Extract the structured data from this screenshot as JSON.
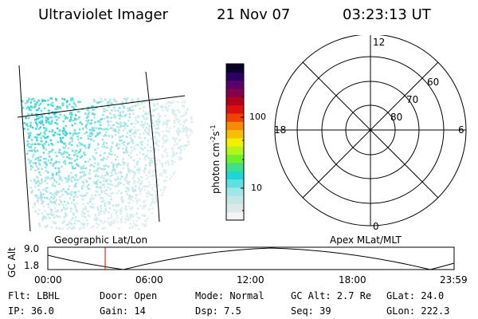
{
  "header": {
    "title": "Ultraviolet Imager",
    "date": "21 Nov 07",
    "time": "03:23:13 UT"
  },
  "colorbar": {
    "label": "photon cm",
    "label_sup1": "-2",
    "label_mid": "s",
    "label_sup2": "-1",
    "ticks": [
      "100",
      "10"
    ],
    "colors": [
      "#f4f4f4",
      "#dde8e8",
      "#c6e6e6",
      "#9fe6e6",
      "#5fe0e0",
      "#1fd6d6",
      "#40e08a",
      "#70ef2c",
      "#b2f41c",
      "#f0f000",
      "#f6c000",
      "#f78a00",
      "#ee4400",
      "#dc1010",
      "#b4001c",
      "#86004a",
      "#5a006e",
      "#2a0060",
      "#0a0028"
    ]
  },
  "polar": {
    "hour_labels": [
      "12",
      "18",
      "6",
      "0"
    ],
    "lat_labels": [
      "60",
      "70",
      "80"
    ]
  },
  "timeline": {
    "left_label": "Geographic Lat/Lon",
    "right_label": "Apex MLat/MLT",
    "axis_title": "GC Alt",
    "y_labels": [
      "9.0",
      "1.8"
    ],
    "x_labels": [
      "00:00",
      "06:00",
      "12:00",
      "18:00",
      "23:59"
    ],
    "marker_color": "#dd0000"
  },
  "status": {
    "flt": "Flt: LBHL",
    "ip": "IP: 36.0",
    "door": "Door: Open",
    "gain": "Gain: 14",
    "mode": "Mode: Normal",
    "dsp": "Dsp:    7.5",
    "gc_alt": "GC Alt: 2.7 Re",
    "seq": "Seq: 39",
    "glat": "GLat:  24.0",
    "glon": "GLon: 222.3"
  }
}
